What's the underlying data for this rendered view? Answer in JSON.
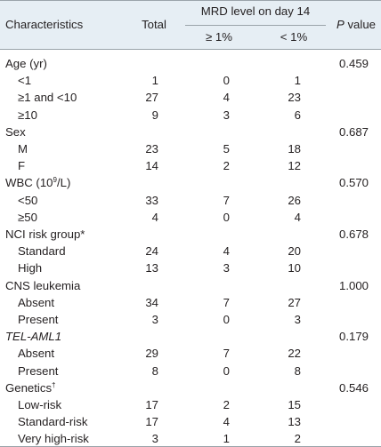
{
  "header": {
    "characteristics": "Characteristics",
    "total": "Total",
    "mrd_group": "MRD level on day 14",
    "ge1": "≥ 1%",
    "lt1": "< 1%",
    "p_italic": "P",
    "p_rest": " value"
  },
  "rows": [
    {
      "label": "Age (yr)",
      "kind": "cat",
      "total": "",
      "ge": "",
      "lt": "",
      "p": "0.459"
    },
    {
      "label": "<1",
      "kind": "sub",
      "total": "1",
      "ge": "0",
      "lt": "1",
      "p": ""
    },
    {
      "label": "≥1 and <10",
      "kind": "sub",
      "total": "27",
      "ge": "4",
      "lt": "23",
      "p": ""
    },
    {
      "label": "≥10",
      "kind": "sub",
      "total": "9",
      "ge": "3",
      "lt": "6",
      "p": ""
    },
    {
      "label": "Sex",
      "kind": "cat",
      "total": "",
      "ge": "",
      "lt": "",
      "p": "0.687"
    },
    {
      "label": "M",
      "kind": "sub",
      "total": "23",
      "ge": "5",
      "lt": "18",
      "p": ""
    },
    {
      "label": "F",
      "kind": "sub",
      "total": "14",
      "ge": "2",
      "lt": "12",
      "p": ""
    },
    {
      "label": "WBC (10",
      "sup": "9",
      "label_after": "/L)",
      "kind": "cat",
      "total": "",
      "ge": "",
      "lt": "",
      "p": "0.570"
    },
    {
      "label": "<50",
      "kind": "sub",
      "total": "33",
      "ge": "7",
      "lt": "26",
      "p": ""
    },
    {
      "label": "≥50",
      "kind": "sub",
      "total": "4",
      "ge": "0",
      "lt": "4",
      "p": ""
    },
    {
      "label": "NCI risk group*",
      "kind": "cat",
      "total": "",
      "ge": "",
      "lt": "",
      "p": "0.678"
    },
    {
      "label": "Standard",
      "kind": "sub",
      "total": "24",
      "ge": "4",
      "lt": "20",
      "p": ""
    },
    {
      "label": "High",
      "kind": "sub",
      "total": "13",
      "ge": "3",
      "lt": "10",
      "p": ""
    },
    {
      "label": "CNS leukemia",
      "kind": "cat",
      "total": "",
      "ge": "",
      "lt": "",
      "p": "1.000"
    },
    {
      "label": "Absent",
      "kind": "sub",
      "total": "34",
      "ge": "7",
      "lt": "27",
      "p": ""
    },
    {
      "label": "Present",
      "kind": "sub",
      "total": "3",
      "ge": "0",
      "lt": "3",
      "p": ""
    },
    {
      "label": "TEL-AML1",
      "kind": "cat",
      "italic": true,
      "total": "",
      "ge": "",
      "lt": "",
      "p": "0.179"
    },
    {
      "label": "Absent",
      "kind": "sub",
      "total": "29",
      "ge": "7",
      "lt": "22",
      "p": ""
    },
    {
      "label": "Present",
      "kind": "sub",
      "total": "8",
      "ge": "0",
      "lt": "8",
      "p": ""
    },
    {
      "label": "Genetics",
      "sup": "†",
      "label_after": "",
      "kind": "cat",
      "total": "",
      "ge": "",
      "lt": "",
      "p": "0.546"
    },
    {
      "label": "Low-risk",
      "kind": "sub",
      "total": "17",
      "ge": "2",
      "lt": "15",
      "p": ""
    },
    {
      "label": "Standard-risk",
      "kind": "sub",
      "total": "17",
      "ge": "4",
      "lt": "13",
      "p": ""
    },
    {
      "label": "Very high-risk",
      "kind": "sub",
      "total": "3",
      "ge": "1",
      "lt": "2",
      "p": ""
    }
  ]
}
